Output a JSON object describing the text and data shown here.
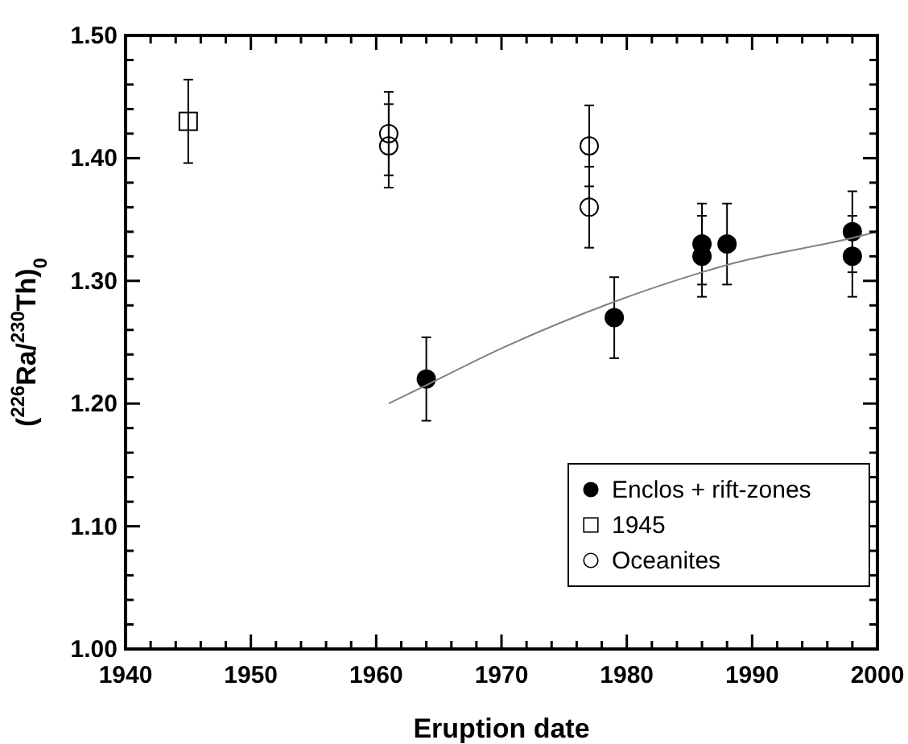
{
  "chart_data": {
    "type": "scatter",
    "xlabel": "Eruption date",
    "ylabel": "($^{226}$Ra/$^{230}$Th)$_{0}$",
    "xlim": [
      1940,
      2000
    ],
    "ylim": [
      1.0,
      1.5
    ],
    "xticks": [
      1940,
      {
        "value": 1942,
        "label": null
      },
      {
        "value": 1944,
        "label": null
      },
      {
        "value": 1946,
        "label": null
      },
      {
        "value": 1948,
        "label": null
      },
      1950,
      {
        "value": 1952,
        "label": null
      },
      {
        "value": 1954,
        "label": null
      },
      {
        "value": 1956,
        "label": null
      },
      {
        "value": 1958,
        "label": null
      },
      1960,
      {
        "value": 1962,
        "label": null
      },
      {
        "value": 1964,
        "label": null
      },
      {
        "value": 1966,
        "label": null
      },
      {
        "value": 1968,
        "label": null
      },
      1970,
      {
        "value": 1972,
        "label": null
      },
      {
        "value": 1974,
        "label": null
      },
      {
        "value": 1976,
        "label": null
      },
      {
        "value": 1978,
        "label": null
      },
      1980,
      {
        "value": 1982,
        "label": null
      },
      {
        "value": 1984,
        "label": null
      },
      {
        "value": 1986,
        "label": null
      },
      {
        "value": 1988,
        "label": null
      },
      1990,
      {
        "value": 1992,
        "label": null
      },
      {
        "value": 1994,
        "label": null
      },
      {
        "value": 1996,
        "label": null
      },
      {
        "value": 1998,
        "label": null
      },
      2000
    ],
    "yticks": [
      {
        "value": 1.0,
        "label": "1.00"
      },
      {
        "value": 1.02,
        "label": null
      },
      {
        "value": 1.04,
        "label": null
      },
      {
        "value": 1.06,
        "label": null
      },
      {
        "value": 1.08,
        "label": null
      },
      {
        "value": 1.1,
        "label": "1.10"
      },
      {
        "value": 1.12,
        "label": null
      },
      {
        "value": 1.14,
        "label": null
      },
      {
        "value": 1.16,
        "label": null
      },
      {
        "value": 1.18,
        "label": null
      },
      {
        "value": 1.2,
        "label": "1.20"
      },
      {
        "value": 1.22,
        "label": null
      },
      {
        "value": 1.24,
        "label": null
      },
      {
        "value": 1.26,
        "label": null
      },
      {
        "value": 1.28,
        "label": null
      },
      {
        "value": 1.3,
        "label": "1.30"
      },
      {
        "value": 1.32,
        "label": null
      },
      {
        "value": 1.34,
        "label": null
      },
      {
        "value": 1.36,
        "label": null
      },
      {
        "value": 1.38,
        "label": null
      },
      {
        "value": 1.4,
        "label": "1.40"
      },
      {
        "value": 1.42,
        "label": null
      },
      {
        "value": 1.44,
        "label": null
      },
      {
        "value": 1.46,
        "label": null
      },
      {
        "value": 1.48,
        "label": null
      },
      {
        "value": 1.5,
        "label": "1.50"
      }
    ],
    "grid": false,
    "legend": "bottom right",
    "series": [
      {
        "name": "Enclos + rift-zones",
        "color": "#000000",
        "marker": "circle",
        "x": [
          1964,
          1979,
          1986,
          1986,
          1988,
          1998,
          1998
        ],
        "values": [
          1.22,
          1.27,
          1.33,
          1.32,
          1.33,
          1.34,
          1.32
        ],
        "errors": [
          0.034,
          0.033,
          0.033,
          0.033,
          0.033,
          0.033,
          0.033
        ]
      },
      {
        "name": "1945",
        "color": "#000000",
        "marker": "square",
        "x": [
          1945
        ],
        "values": [
          1.43
        ],
        "errors": [
          0.034
        ]
      },
      {
        "name": "Oceanites",
        "color": "#000000",
        "marker": "circle_open",
        "x": [
          1961,
          1961,
          1977,
          1977
        ],
        "values": [
          1.42,
          1.41,
          1.41,
          1.36
        ],
        "errors": [
          0.034,
          0.034,
          0.033,
          0.033
        ]
      },
      {
        "type": "line",
        "color": "#808080",
        "marker": "none",
        "x": [
          1961,
          1964,
          1970,
          1979,
          1986,
          1988,
          1998,
          2000
        ],
        "values": [
          1.2,
          1.215,
          1.245,
          1.283,
          1.307,
          1.313,
          1.335,
          1.34
        ]
      }
    ]
  }
}
